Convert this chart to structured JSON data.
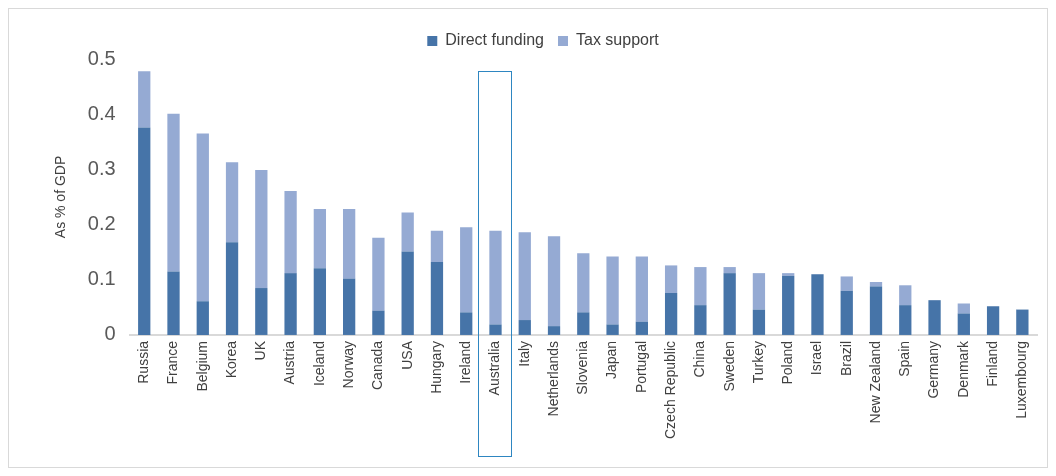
{
  "chart_data": {
    "type": "bar",
    "stacked": true,
    "ylabel": "As % of GDP",
    "legend": "top",
    "grid": false,
    "categories": [
      "Russia",
      "France",
      "Belgium",
      "Korea",
      "UK",
      "Austria",
      "Iceland",
      "Norway",
      "Canada",
      "USA",
      "Hungary",
      "Ireland",
      "Australia",
      "Italy",
      "Netherlands",
      "Slovenia",
      "Japan",
      "Portugal",
      "Czech Republic",
      "China",
      "Sweden",
      "Turkey",
      "Poland",
      "Israel",
      "Brazil",
      "New Zealand",
      "Spain",
      "Germany",
      "Denmark",
      "Finland",
      "Luxembourg"
    ],
    "series": [
      {
        "name": "Direct funding",
        "color": "#4674a8",
        "values": [
          0.376,
          0.115,
          0.061,
          0.168,
          0.085,
          0.112,
          0.121,
          0.102,
          0.044,
          0.151,
          0.132,
          0.041,
          0.019,
          0.027,
          0.016,
          0.041,
          0.019,
          0.024,
          0.076,
          0.054,
          0.112,
          0.046,
          0.107,
          0.11,
          0.08,
          0.088,
          0.054,
          0.063,
          0.039,
          0.052,
          0.046
        ]
      },
      {
        "name": "Tax support",
        "color": "#95aad3",
        "values": [
          0.102,
          0.286,
          0.304,
          0.145,
          0.214,
          0.149,
          0.107,
          0.126,
          0.132,
          0.071,
          0.057,
          0.154,
          0.17,
          0.159,
          0.163,
          0.107,
          0.123,
          0.118,
          0.05,
          0.069,
          0.011,
          0.066,
          0.005,
          0,
          0.026,
          0.008,
          0.036,
          0,
          0.018,
          0,
          0
        ]
      }
    ],
    "ylim": [
      0,
      0.5
    ],
    "yticks": [
      0,
      0.1,
      0.2,
      0.3,
      0.4,
      0.5
    ]
  }
}
